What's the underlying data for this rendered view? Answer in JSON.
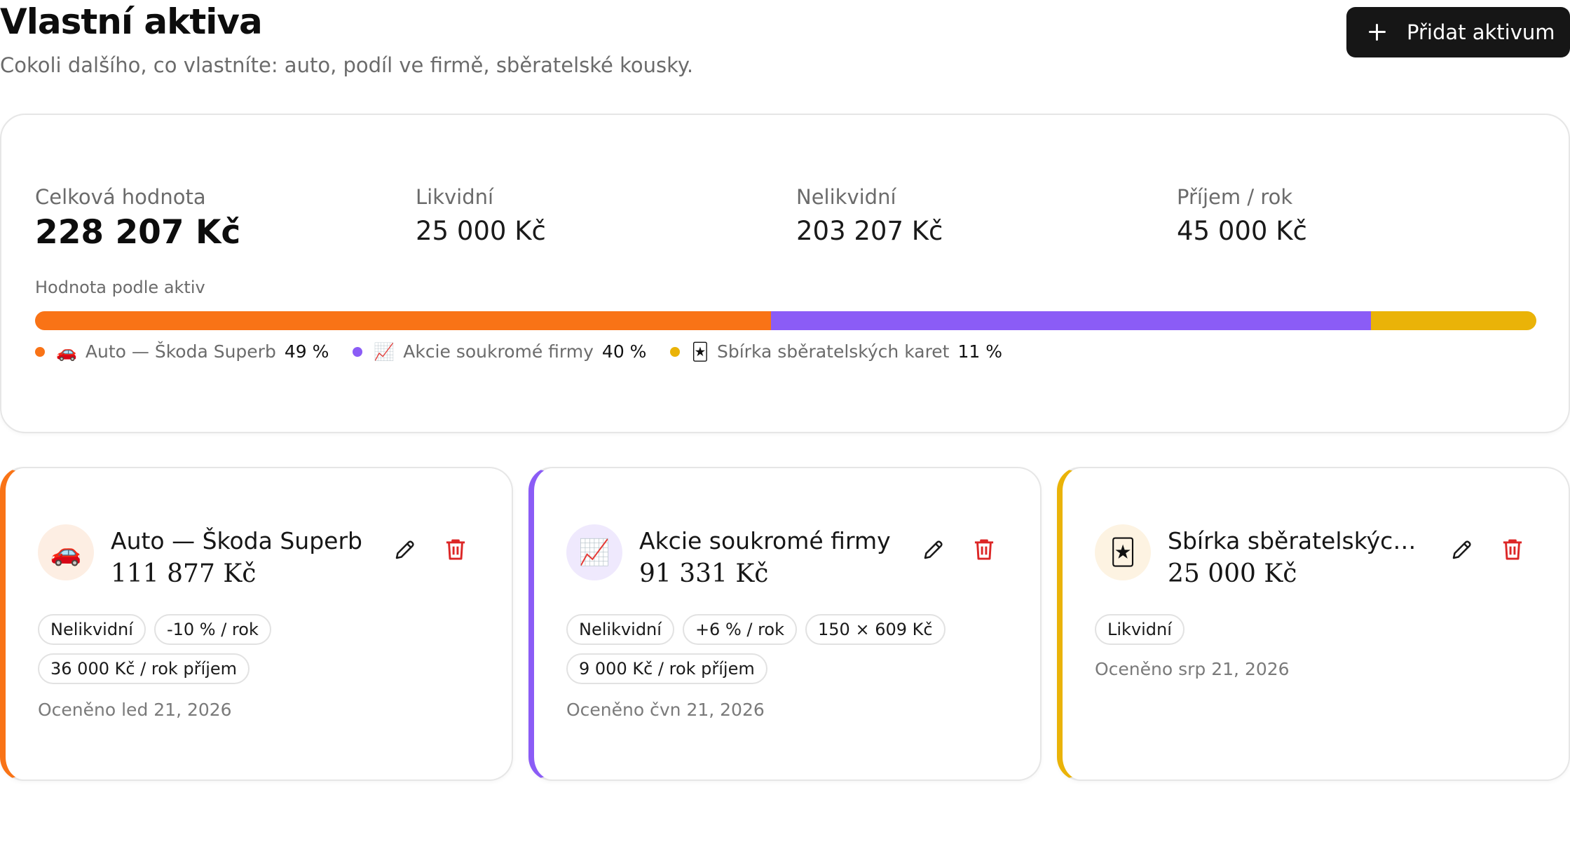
{
  "header": {
    "title": "Vlastní aktiva",
    "subtitle": "Cokoli dalšího, co vlastníte: auto, podíl ve firmě, sběratelské kousky.",
    "add_button_label": "Přidat aktivum"
  },
  "summary": {
    "total_label": "Celková hodnota",
    "total_value": "228 207 Kč",
    "liquid_label": "Likvidní",
    "liquid_value": "25 000 Kč",
    "illiquid_label": "Nelikvidní",
    "illiquid_value": "203 207 Kč",
    "income_label": "Příjem / rok",
    "income_value": "45 000 Kč",
    "breakdown_label": "Hodnota podle aktiv",
    "breakdown": [
      {
        "emoji": "🚗",
        "name": "Auto — Škoda Superb",
        "pct_label": "49 %",
        "fraction": 0.49,
        "color": "#f97316"
      },
      {
        "emoji": "📈",
        "name": "Akcie soukromé firmy",
        "pct_label": "40 %",
        "fraction": 0.4,
        "color": "#8b5cf6"
      },
      {
        "emoji": "🃏",
        "name": "Sbírka sběratelských karet",
        "pct_label": "11 %",
        "fraction": 0.11,
        "color": "#eab308"
      }
    ]
  },
  "assets": [
    {
      "emoji": "🚗",
      "name": "Auto — Škoda Superb",
      "value": "111 877 Kč",
      "color": "#f97316",
      "avatar_bg": "#fdeee3",
      "tags": [
        "Nelikvidní",
        "-10 % / rok",
        "36 000 Kč / rok příjem"
      ],
      "valued": "Oceněno led 21, 2026"
    },
    {
      "emoji": "📈",
      "name": "Akcie soukromé firmy",
      "value": "91 331 Kč",
      "color": "#8b5cf6",
      "avatar_bg": "#efe9fd",
      "tags": [
        "Nelikvidní",
        "+6 % / rok",
        "150 × 609 Kč",
        "9 000 Kč / rok příjem"
      ],
      "valued": "Oceněno čvn 21, 2026"
    },
    {
      "emoji": "🃏",
      "name": "Sbírka sběratelských karet",
      "value": "25 000 Kč",
      "color": "#eab308",
      "avatar_bg": "#fdf3e2",
      "tags": [
        "Likvidní"
      ],
      "valued": "Oceněno srp 21, 2026"
    }
  ],
  "icons": {
    "add": "plus-icon",
    "edit": "pencil-icon",
    "delete": "trash-icon"
  },
  "colors": {
    "delete_icon": "#dc2626",
    "button_bg": "#161616"
  }
}
